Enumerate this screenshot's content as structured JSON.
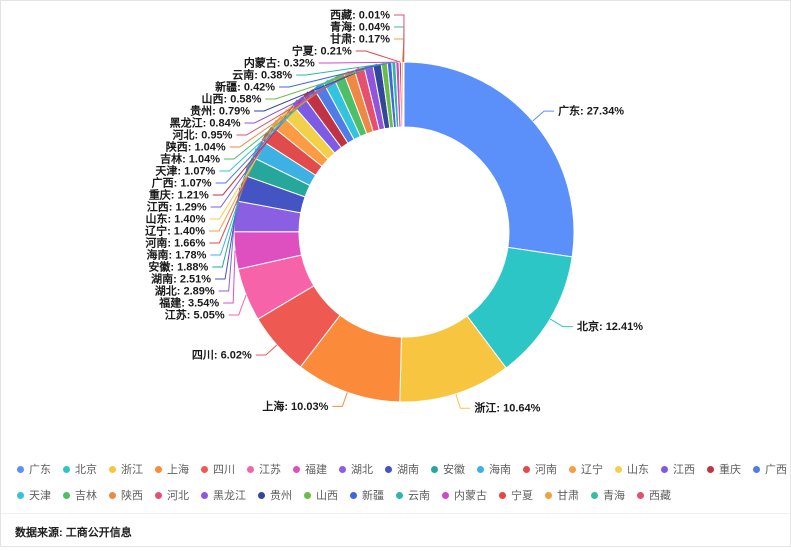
{
  "chart_data": {
    "type": "pie",
    "subtype": "donut",
    "title": "",
    "unit": "%",
    "label_format": "{name}: {percent}",
    "legend_position": "bottom",
    "layout": {
      "start": "top",
      "clockwise": true,
      "inner_radius_ratio": 0.62
    },
    "series": [
      {
        "name": "广东",
        "value": 27.34,
        "label": "27.34%",
        "color": "#5B8FF9"
      },
      {
        "name": "北京",
        "value": 12.41,
        "label": "12.41%",
        "color": "#2CC6C6"
      },
      {
        "name": "浙江",
        "value": 10.64,
        "label": "10.64%",
        "color": "#F7C53F"
      },
      {
        "name": "上海",
        "value": 10.03,
        "label": "10.03%",
        "color": "#FB8A3B"
      },
      {
        "name": "四川",
        "value": 6.02,
        "label": "6.02%",
        "color": "#EE5A52"
      },
      {
        "name": "江苏",
        "value": 5.05,
        "label": "5.05%",
        "color": "#F763A9"
      },
      {
        "name": "福建",
        "value": 3.54,
        "label": "3.54%",
        "color": "#DE4FC0"
      },
      {
        "name": "湖北",
        "value": 2.89,
        "label": "2.89%",
        "color": "#8A5FE2"
      },
      {
        "name": "湖南",
        "value": 2.51,
        "label": "2.51%",
        "color": "#4454C3"
      },
      {
        "name": "安徽",
        "value": 1.88,
        "label": "1.88%",
        "color": "#27A69B"
      },
      {
        "name": "海南",
        "value": 1.78,
        "label": "1.78%",
        "color": "#3EB1E4"
      },
      {
        "name": "河南",
        "value": 1.66,
        "label": "1.66%",
        "color": "#E14B4B"
      },
      {
        "name": "辽宁",
        "value": 1.4,
        "label": "1.40%",
        "color": "#FB9B43"
      },
      {
        "name": "山东",
        "value": 1.4,
        "label": "1.40%",
        "color": "#F3D04A"
      },
      {
        "name": "江西",
        "value": 1.29,
        "label": "1.29%",
        "color": "#7E5BE5"
      },
      {
        "name": "重庆",
        "value": 1.21,
        "label": "1.21%",
        "color": "#BF3345"
      },
      {
        "name": "广西",
        "value": 1.07,
        "label": "1.07%",
        "color": "#4E7DE8"
      },
      {
        "name": "天津",
        "value": 1.07,
        "label": "1.07%",
        "color": "#34C3DD"
      },
      {
        "name": "吉林",
        "value": 1.04,
        "label": "1.04%",
        "color": "#4EBE67"
      },
      {
        "name": "陕西",
        "value": 1.04,
        "label": "1.04%",
        "color": "#F08845"
      },
      {
        "name": "河北",
        "value": 0.95,
        "label": "0.95%",
        "color": "#E6506F"
      },
      {
        "name": "黑龙江",
        "value": 0.84,
        "label": "0.84%",
        "color": "#9155DB"
      },
      {
        "name": "贵州",
        "value": 0.79,
        "label": "0.79%",
        "color": "#32479C"
      },
      {
        "name": "山西",
        "value": 0.58,
        "label": "0.58%",
        "color": "#69BC45"
      },
      {
        "name": "新疆",
        "value": 0.42,
        "label": "0.42%",
        "color": "#3D66DF"
      },
      {
        "name": "云南",
        "value": 0.38,
        "label": "0.38%",
        "color": "#2EB7A6"
      },
      {
        "name": "内蒙古",
        "value": 0.32,
        "label": "0.32%",
        "color": "#D247C7"
      },
      {
        "name": "宁夏",
        "value": 0.21,
        "label": "0.21%",
        "color": "#E64545"
      },
      {
        "name": "甘肃",
        "value": 0.17,
        "label": "0.17%",
        "color": "#F0A03C"
      },
      {
        "name": "青海",
        "value": 0.04,
        "label": "0.04%",
        "color": "#34BEA1"
      },
      {
        "name": "西藏",
        "value": 0.01,
        "label": "0.01%",
        "color": "#E1506D"
      }
    ]
  },
  "footer": {
    "source_label": "数据来源: 工商公开信息"
  }
}
